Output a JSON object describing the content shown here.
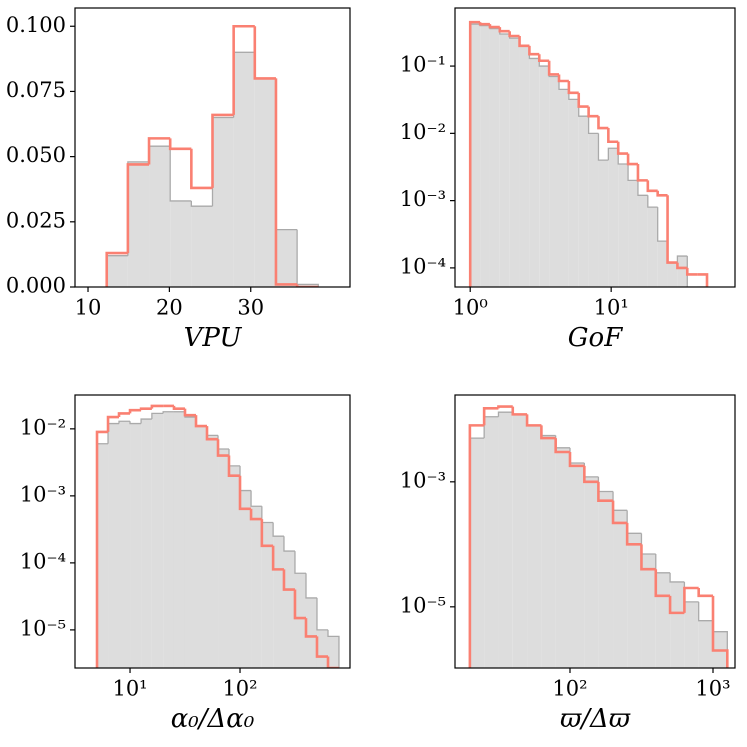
{
  "chart_data": [
    {
      "type": "histogram",
      "xlabel": "VPU",
      "xscale": "linear",
      "yscale": "linear",
      "xlim": [
        8.4,
        42.2
      ],
      "ylim": [
        0,
        0.107
      ],
      "xticks": [
        10,
        20,
        30
      ],
      "yticks": [
        {
          "value": 0,
          "label": "0.000"
        },
        {
          "value": 0.025,
          "label": "0.025"
        },
        {
          "value": 0.05,
          "label": "0.050"
        },
        {
          "value": 0.075,
          "label": "0.075"
        },
        {
          "value": 0.1,
          "label": "0.100"
        }
      ],
      "bins": [
        12.3,
        14.9,
        17.5,
        20.1,
        22.7,
        25.3,
        27.9,
        30.5,
        33.1,
        35.7,
        38.3
      ],
      "series": [
        {
          "color": "#dddddd",
          "edgecolor": "#aaaaaa",
          "fill": true,
          "values": [
            0.012,
            0.048,
            0.054,
            0.033,
            0.031,
            0.065,
            0.09,
            0.08,
            0.022,
            0.001
          ]
        },
        {
          "color": "#fa8072",
          "fill": false,
          "values": [
            0.013,
            0.047,
            0.057,
            0.053,
            0.038,
            0.066,
            0.1,
            0.08,
            0.001,
            0
          ]
        }
      ]
    },
    {
      "type": "histogram",
      "xlabel": "GoF",
      "xscale": "log",
      "yscale": "log",
      "xlim": [
        0.78,
        75.6
      ],
      "ylim": [
        5.2e-05,
        0.73
      ],
      "xticks": [
        {
          "value": 1,
          "label": "10⁰"
        },
        {
          "value": 10,
          "label": "10¹"
        }
      ],
      "yticks": [
        {
          "value": 0.1,
          "label": "10⁻¹"
        },
        {
          "value": 0.01,
          "label": "10⁻²"
        },
        {
          "value": 0.001,
          "label": "10⁻³"
        },
        {
          "value": 0.0001,
          "label": "10⁻⁴"
        }
      ],
      "bins": [
        1,
        1.175,
        1.38,
        1.622,
        1.905,
        2.239,
        2.63,
        3.09,
        3.631,
        4.266,
        5.012,
        5.888,
        6.918,
        8.128,
        9.55,
        11.22,
        13.18,
        15.49,
        18.2,
        21.38,
        25.12,
        29.51,
        34.67,
        40.74,
        47.86
      ],
      "series": [
        {
          "color": "#dddddd",
          "edgecolor": "#aaaaaa",
          "fill": true,
          "values": [
            0.42,
            0.4,
            0.36,
            0.3,
            0.26,
            0.2,
            0.13,
            0.1,
            0.07,
            0.045,
            0.032,
            0.018,
            0.01,
            0.004,
            0.006,
            0.0035,
            0.002,
            0.0012,
            0.0008,
            0.00025,
            0.00012,
            0.00015,
            0,
            0
          ]
        },
        {
          "color": "#fa8072",
          "fill": false,
          "values": [
            0.45,
            0.42,
            0.38,
            0.33,
            0.28,
            0.2,
            0.15,
            0.12,
            0.075,
            0.06,
            0.04,
            0.025,
            0.018,
            0.012,
            0.0075,
            0.005,
            0.0035,
            0.002,
            0.0014,
            0.0012,
            0.00012,
            0.0001,
            8e-05,
            8e-05
          ]
        }
      ]
    },
    {
      "type": "histogram",
      "xlabel": "α₀/Δα₀",
      "xscale": "log",
      "yscale": "log",
      "xlim": [
        3.16,
        1000
      ],
      "ylim": [
        2.7e-06,
        0.032
      ],
      "xticks": [
        {
          "value": 10,
          "label": "10¹"
        },
        {
          "value": 100,
          "label": "10²"
        }
      ],
      "yticks": [
        {
          "value": 0.01,
          "label": "10⁻²"
        },
        {
          "value": 0.001,
          "label": "10⁻³"
        },
        {
          "value": 0.0001,
          "label": "10⁻⁴"
        },
        {
          "value": 1e-05,
          "label": "10⁻⁵"
        }
      ],
      "bins": [
        5.01,
        6.31,
        7.94,
        10,
        12.6,
        15.8,
        20,
        25.1,
        31.6,
        39.8,
        50.1,
        63.1,
        79.4,
        100,
        126,
        158,
        200,
        251,
        316,
        398,
        501,
        631,
        794
      ],
      "series": [
        {
          "color": "#dddddd",
          "edgecolor": "#aaaaaa",
          "fill": true,
          "values": [
            0.006,
            0.012,
            0.013,
            0.012,
            0.014,
            0.017,
            0.018,
            0.018,
            0.015,
            0.011,
            0.008,
            0.005,
            0.0028,
            0.0012,
            0.0007,
            0.0004,
            0.00025,
            0.00015,
            7e-05,
            3e-05,
            1e-05,
            8e-06
          ]
        },
        {
          "color": "#fa8072",
          "fill": false,
          "values": [
            0.009,
            0.015,
            0.017,
            0.019,
            0.02,
            0.022,
            0.022,
            0.02,
            0.016,
            0.011,
            0.007,
            0.004,
            0.002,
            0.00064,
            0.00045,
            0.00018,
            8e-05,
            4e-05,
            1.5e-05,
            8e-06,
            4e-06,
            0
          ]
        }
      ]
    },
    {
      "type": "histogram",
      "xlabel": "ϖ/Δϖ",
      "xscale": "log",
      "yscale": "log",
      "xlim": [
        15.7,
        1425
      ],
      "ylim": [
        1.05e-06,
        0.0245
      ],
      "xticks": [
        {
          "value": 100,
          "label": "10²"
        },
        {
          "value": 1000,
          "label": "10³"
        }
      ],
      "yticks": [
        {
          "value": 0.001,
          "label": "10⁻³"
        },
        {
          "value": 1e-05,
          "label": "10⁻⁵"
        }
      ],
      "bins": [
        19.95,
        25.1,
        31.6,
        39.8,
        50.1,
        63.1,
        79.4,
        100,
        126,
        158,
        200,
        251,
        316,
        398,
        501,
        631,
        794,
        1000,
        1259
      ],
      "series": [
        {
          "color": "#dddddd",
          "edgecolor": "#aaaaaa",
          "fill": true,
          "values": [
            0.005,
            0.011,
            0.013,
            0.012,
            0.008,
            0.0055,
            0.0035,
            0.002,
            0.0012,
            0.0007,
            0.00035,
            0.00015,
            7e-05,
            3.5e-05,
            2.5e-05,
            1.2e-05,
            6e-06,
            4e-06
          ]
        },
        {
          "color": "#fa8072",
          "fill": false,
          "values": [
            0.008,
            0.015,
            0.016,
            0.012,
            0.008,
            0.005,
            0.003,
            0.0018,
            0.001,
            0.0005,
            0.00022,
            0.0001,
            4e-05,
            1.5e-05,
            8e-06,
            2e-05,
            1.5e-05,
            2e-06
          ]
        }
      ]
    }
  ]
}
